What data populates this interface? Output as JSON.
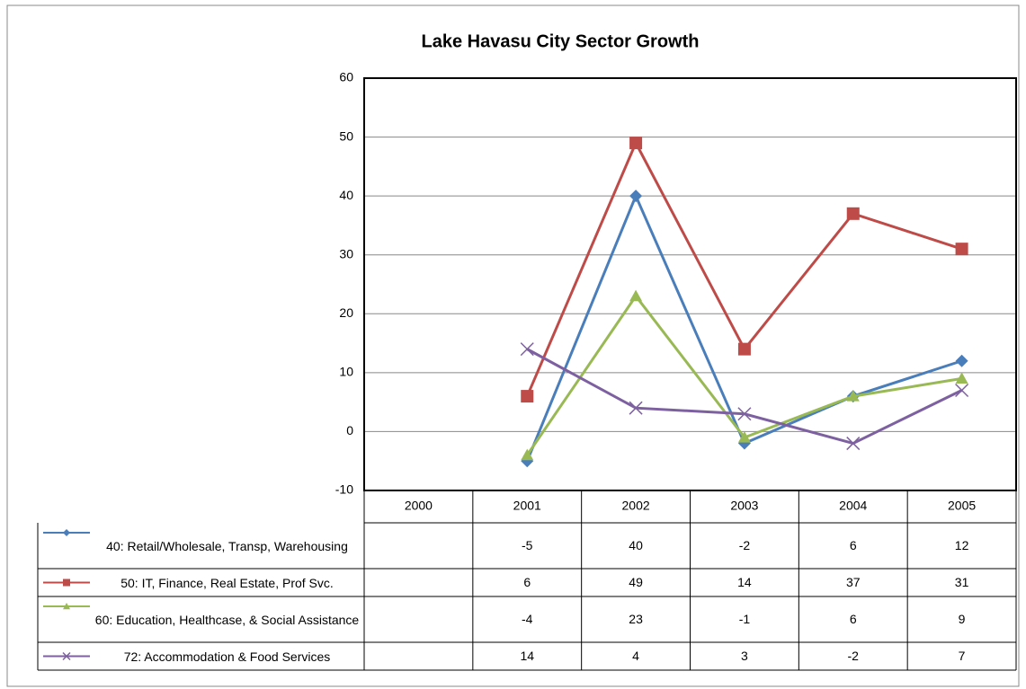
{
  "chart_data": {
    "type": "line",
    "title": "Lake Havasu City Sector Growth",
    "categories": [
      "2000",
      "2001",
      "2002",
      "2003",
      "2004",
      "2005"
    ],
    "series": [
      {
        "name": "40: Retail/Wholesale, Transp, Warehousing",
        "color": "#4a7ebb",
        "marker": "diamond",
        "values": [
          null,
          -5,
          40,
          -2,
          6,
          12
        ]
      },
      {
        "name": "50: IT, Finance, Real Estate, Prof Svc.",
        "color": "#be4b48",
        "marker": "square",
        "values": [
          null,
          6,
          49,
          14,
          37,
          31
        ]
      },
      {
        "name": "60: Education, Healthcase, & Social Assistance",
        "color": "#98b954",
        "marker": "triangle",
        "values": [
          null,
          -4,
          23,
          -1,
          6,
          9
        ]
      },
      {
        "name": "72: Accommodation & Food Services",
        "color": "#7d60a0",
        "marker": "x",
        "values": [
          null,
          14,
          4,
          3,
          -2,
          7
        ]
      }
    ],
    "ylim": [
      -10,
      60
    ],
    "yticks": [
      -10,
      0,
      10,
      20,
      30,
      40,
      50,
      60
    ],
    "grid": true,
    "data_table": true
  }
}
